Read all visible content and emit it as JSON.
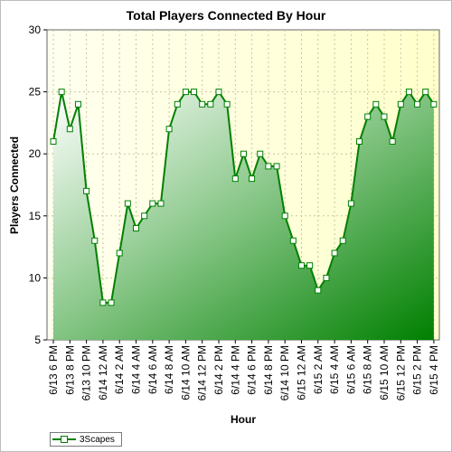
{
  "chart_data": {
    "type": "area",
    "title": "Total Players Connected By Hour",
    "xlabel": "Hour",
    "ylabel": "Players Connected",
    "ylim": [
      5,
      30
    ],
    "y_ticks": [
      5,
      10,
      15,
      20,
      25,
      30
    ],
    "grid": true,
    "legend_position": "bottom-left",
    "x_tick_labels": [
      "6/13 6 PM",
      "6/13 8 PM",
      "6/13 10 PM",
      "6/14 12 AM",
      "6/14 2 AM",
      "6/14 4 AM",
      "6/14 6 AM",
      "6/14 8 AM",
      "6/14 10 AM",
      "6/14 12 PM",
      "6/14 2 PM",
      "6/14 4 PM",
      "6/14 6 PM",
      "6/14 8 PM",
      "6/14 10 PM",
      "6/15 12 AM",
      "6/15 2 AM",
      "6/15 4 AM",
      "6/15 6 AM",
      "6/15 8 AM",
      "6/15 10 AM",
      "6/15 12 PM",
      "6/15 2 PM",
      "6/15 4 PM"
    ],
    "series": [
      {
        "name": "3Scapes",
        "color": "#008000",
        "values": [
          21,
          25,
          22,
          24,
          17,
          13,
          8,
          8,
          12,
          16,
          14,
          15,
          16,
          16,
          22,
          24,
          25,
          25,
          24,
          24,
          25,
          24,
          18,
          20,
          18,
          20,
          19,
          19,
          15,
          13,
          11,
          11,
          9,
          10,
          12,
          13,
          16,
          21,
          23,
          24,
          23,
          21,
          24,
          25,
          24,
          25,
          24
        ]
      }
    ]
  }
}
